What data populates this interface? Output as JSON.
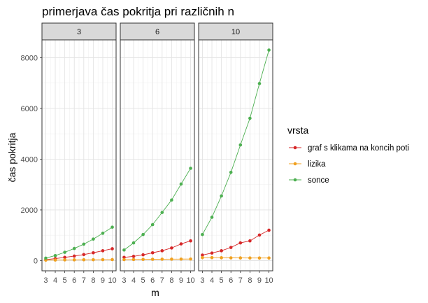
{
  "chart_data": {
    "type": "line",
    "title": "primerjava čas pokritja pri različnih n",
    "xlabel": "m",
    "ylabel": "čas pokritja",
    "x": [
      3,
      4,
      5,
      6,
      7,
      8,
      9,
      10
    ],
    "x_ticks": [
      "3",
      "4",
      "5",
      "6",
      "7",
      "8",
      "9",
      "10"
    ],
    "xlim": [
      2.6,
      10.4
    ],
    "ylim": [
      -400,
      8700
    ],
    "y_ticks": [
      0,
      2000,
      4000,
      6000,
      8000
    ],
    "y_tick_labels": [
      "0",
      "2000",
      "4000",
      "6000",
      "8000"
    ],
    "grid": true,
    "legend": {
      "title": "vrsta",
      "position": "right",
      "entries": [
        {
          "label": "graf s klikama na koncih poti",
          "color": "#d62728"
        },
        {
          "label": "lizika",
          "color": "#f0a020"
        },
        {
          "label": "sonce",
          "color": "#4caf50"
        }
      ]
    },
    "panels": [
      {
        "label": "3",
        "series": [
          {
            "name": "graf s klikama na koncih poti",
            "color": "#d62728",
            "values": [
              40,
              80,
              130,
              180,
              240,
              310,
              390,
              470
            ]
          },
          {
            "name": "lizika",
            "color": "#f0a020",
            "values": [
              20,
              25,
              30,
              32,
              35,
              37,
              40,
              42
            ]
          },
          {
            "name": "sonce",
            "color": "#4caf50",
            "values": [
              100,
              200,
              330,
              480,
              650,
              850,
              1080,
              1320
            ]
          }
        ]
      },
      {
        "label": "6",
        "series": [
          {
            "name": "graf s klikama na koncih poti",
            "color": "#d62728",
            "values": [
              130,
              170,
              230,
              310,
              390,
              500,
              660,
              780
            ]
          },
          {
            "name": "lizika",
            "color": "#f0a020",
            "values": [
              40,
              45,
              50,
              55,
              58,
              60,
              62,
              65
            ]
          },
          {
            "name": "sonce",
            "color": "#4caf50",
            "values": [
              420,
              700,
              1030,
              1420,
              1900,
              2390,
              3020,
              3640
            ]
          }
        ]
      },
      {
        "label": "10",
        "series": [
          {
            "name": "graf s klikama na koncih poti",
            "color": "#d62728",
            "values": [
              220,
              300,
              390,
              520,
              700,
              780,
              1010,
              1200
            ]
          },
          {
            "name": "lizika",
            "color": "#f0a020",
            "values": [
              120,
              120,
              115,
              110,
              108,
              106,
              105,
              105
            ]
          },
          {
            "name": "sonce",
            "color": "#4caf50",
            "values": [
              1030,
              1710,
              2550,
              3480,
              4560,
              5610,
              6980,
              8300
            ]
          }
        ]
      }
    ]
  }
}
